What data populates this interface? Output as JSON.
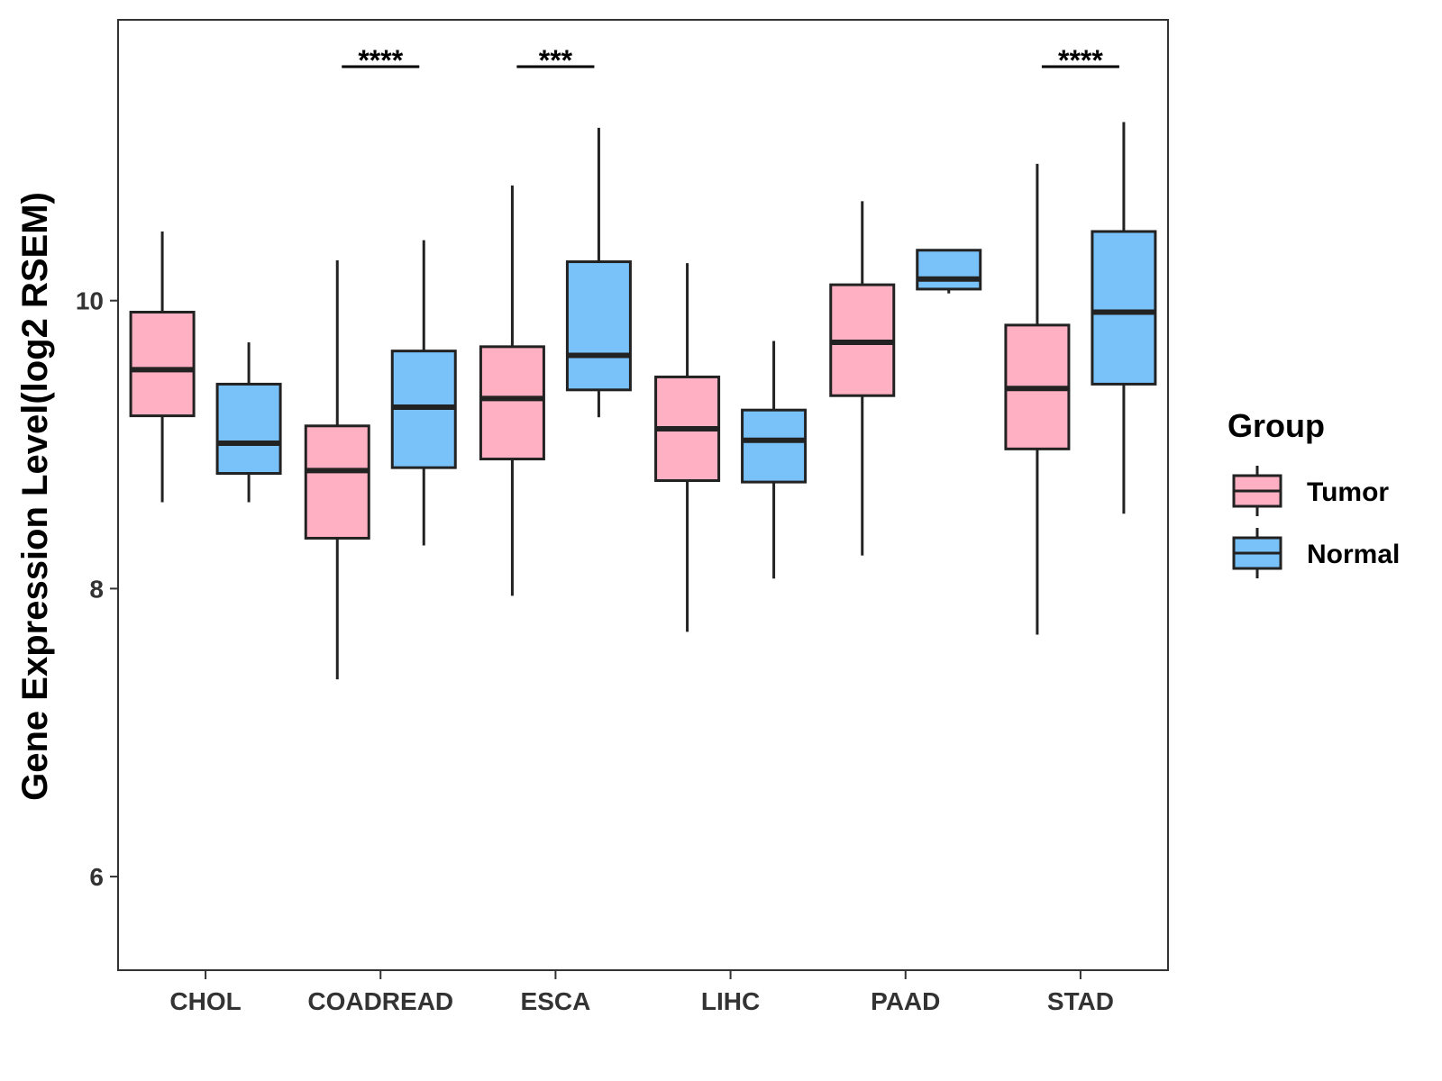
{
  "chart_data": {
    "type": "box",
    "title": "",
    "xlabel": "",
    "ylabel": "Gene Expression Level(log2 RSEM)",
    "ylim": [
      5.35,
      11.95
    ],
    "yticks": [
      6,
      8,
      10
    ],
    "categories": [
      "CHOL",
      "COADREAD",
      "ESCA",
      "LIHC",
      "PAAD",
      "STAD"
    ],
    "legend": {
      "title": "Group",
      "position": "right",
      "entries": [
        {
          "name": "Tumor",
          "color": "#FFB0C2"
        },
        {
          "name": "Normal",
          "color": "#79C1F9"
        }
      ]
    },
    "series": [
      {
        "name": "Tumor",
        "color": "#FFB0C2",
        "boxes": [
          {
            "category": "CHOL",
            "whisker_low": 8.6,
            "q1": 9.2,
            "median": 9.52,
            "q3": 9.92,
            "whisker_high": 10.48
          },
          {
            "category": "COADREAD",
            "whisker_low": 7.37,
            "q1": 8.35,
            "median": 8.82,
            "q3": 9.13,
            "whisker_high": 10.28
          },
          {
            "category": "ESCA",
            "whisker_low": 7.95,
            "q1": 8.9,
            "median": 9.32,
            "q3": 9.68,
            "whisker_high": 10.8
          },
          {
            "category": "LIHC",
            "whisker_low": 7.7,
            "q1": 8.75,
            "median": 9.11,
            "q3": 9.47,
            "whisker_high": 10.26
          },
          {
            "category": "PAAD",
            "whisker_low": 8.23,
            "q1": 9.34,
            "median": 9.71,
            "q3": 10.11,
            "whisker_high": 10.69
          },
          {
            "category": "STAD",
            "whisker_low": 7.68,
            "q1": 8.97,
            "median": 9.39,
            "q3": 9.83,
            "whisker_high": 10.95
          }
        ]
      },
      {
        "name": "Normal",
        "color": "#79C1F9",
        "boxes": [
          {
            "category": "CHOL",
            "whisker_low": 8.6,
            "q1": 8.8,
            "median": 9.01,
            "q3": 9.42,
            "whisker_high": 9.71
          },
          {
            "category": "COADREAD",
            "whisker_low": 8.3,
            "q1": 8.84,
            "median": 9.26,
            "q3": 9.65,
            "whisker_high": 10.42
          },
          {
            "category": "ESCA",
            "whisker_low": 9.19,
            "q1": 9.38,
            "median": 9.62,
            "q3": 10.27,
            "whisker_high": 11.2
          },
          {
            "category": "LIHC",
            "whisker_low": 8.07,
            "q1": 8.74,
            "median": 9.03,
            "q3": 9.24,
            "whisker_high": 9.72
          },
          {
            "category": "PAAD",
            "whisker_low": 10.05,
            "q1": 10.08,
            "median": 10.15,
            "q3": 10.35,
            "whisker_high": 10.35
          },
          {
            "category": "STAD",
            "whisker_low": 8.52,
            "q1": 9.42,
            "median": 9.92,
            "q3": 10.48,
            "whisker_high": 11.24
          }
        ]
      }
    ],
    "annotations": [
      {
        "category": "COADREAD",
        "label": "****"
      },
      {
        "category": "ESCA",
        "label": "***"
      },
      {
        "category": "STAD",
        "label": "****"
      }
    ]
  }
}
